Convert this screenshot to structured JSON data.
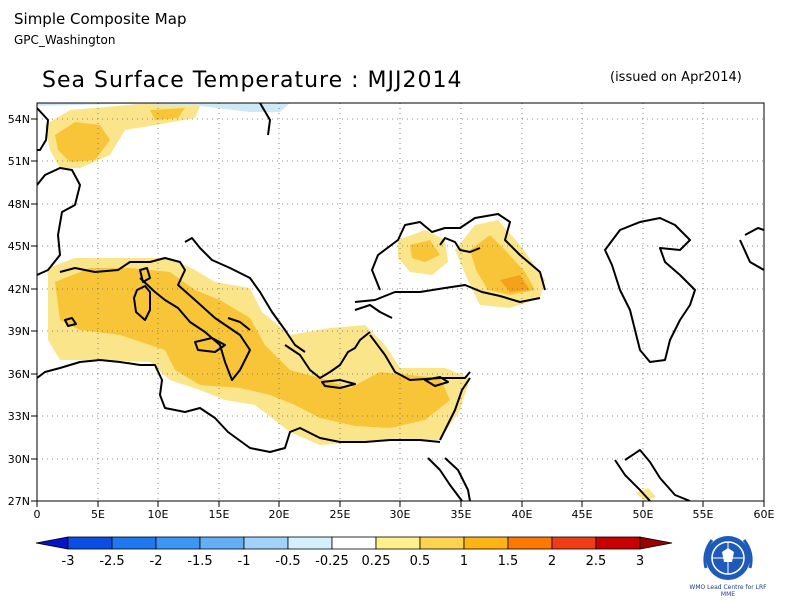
{
  "header": {
    "title": "Simple Composite Map",
    "source": "GPC_Washington"
  },
  "map": {
    "title": "Sea Surface Temperature : MJJ2014",
    "issued": "(issued on Apr2014)",
    "lat_labels": [
      "54N",
      "51N",
      "48N",
      "45N",
      "42N",
      "39N",
      "36N",
      "33N",
      "30N",
      "27N"
    ],
    "lon_labels": [
      "0",
      "5E",
      "10E",
      "15E",
      "20E",
      "25E",
      "30E",
      "35E",
      "40E",
      "45E",
      "50E",
      "55E",
      "60E"
    ],
    "lat_range": [
      27,
      55
    ],
    "lon_range": [
      0,
      60
    ],
    "grid": "dotted, every 3° latitude and 5° longitude"
  },
  "colorbar": {
    "labels": [
      "-3",
      "-2.5",
      "-2",
      "-1.5",
      "-1",
      "-0.5",
      "-0.25",
      "0.25",
      "0.5",
      "1",
      "1.5",
      "2",
      "2.5",
      "3"
    ],
    "colors": [
      "#0014c8",
      "#0a4ee6",
      "#1e78f0",
      "#3c96f5",
      "#64aef8",
      "#a0d2fa",
      "#d4f0fc",
      "#ffffff",
      "#fff08c",
      "#ffd250",
      "#ffb414",
      "#ff7800",
      "#f03c14",
      "#c80000",
      "#9b0000"
    ]
  },
  "anomaly_colors": {
    "light_yellow": "#fbe58a",
    "yellow": "#f8c538",
    "orange": "#f4a21c",
    "light_blue": "#cde9f6"
  },
  "logo": {
    "text": "WMO Lead Centre for LRF MME"
  }
}
